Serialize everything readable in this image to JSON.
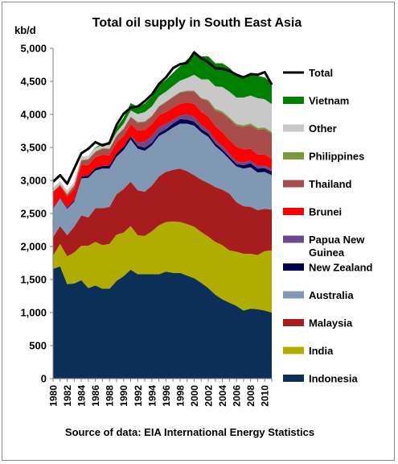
{
  "chart_data": {
    "type": "area",
    "stacked": true,
    "title": "Total oil supply in South East Asia",
    "ylabel": "kb/d",
    "source": "Source of data: EIA International Energy Statistics",
    "ylim": [
      0,
      5000
    ],
    "yticks": [
      "0",
      "500",
      "1,000",
      "1,500",
      "2,000",
      "2,500",
      "3,000",
      "3,500",
      "4,000",
      "4,500",
      "5,000"
    ],
    "ytick_values": [
      0,
      500,
      1000,
      1500,
      2000,
      2500,
      3000,
      3500,
      4000,
      4500,
      5000
    ],
    "x": [
      1980,
      1981,
      1982,
      1983,
      1984,
      1985,
      1986,
      1987,
      1988,
      1989,
      1990,
      1991,
      1992,
      1993,
      1994,
      1995,
      1996,
      1997,
      1998,
      1999,
      2000,
      2001,
      2002,
      2003,
      2004,
      2005,
      2006,
      2007,
      2008,
      2009,
      2010,
      2011
    ],
    "xtick_labels": [
      "1980",
      "1982",
      "1984",
      "1986",
      "1988",
      "1990",
      "1992",
      "1994",
      "1996",
      "1998",
      "2000",
      "2002",
      "2004",
      "2006",
      "2008",
      "2010"
    ],
    "grid": false,
    "legend_position": "right",
    "series": [
      {
        "name": "Indonesia",
        "color": "#0b2f57",
        "values": [
          1660,
          1700,
          1430,
          1440,
          1490,
          1370,
          1410,
          1360,
          1360,
          1480,
          1550,
          1650,
          1580,
          1580,
          1580,
          1580,
          1620,
          1600,
          1600,
          1560,
          1520,
          1450,
          1370,
          1270,
          1200,
          1150,
          1100,
          1030,
          1060,
          1050,
          1030,
          1000
        ]
      },
      {
        "name": "India",
        "color": "#b0ad00",
        "values": [
          200,
          340,
          420,
          470,
          520,
          640,
          660,
          660,
          680,
          700,
          660,
          660,
          590,
          580,
          650,
          740,
          750,
          780,
          770,
          780,
          780,
          770,
          780,
          800,
          820,
          790,
          820,
          860,
          830,
          820,
          900,
          940
        ]
      },
      {
        "name": "Malaysia",
        "color": "#a71c1c",
        "values": [
          280,
          270,
          320,
          390,
          460,
          430,
          510,
          560,
          560,
          610,
          660,
          670,
          680,
          670,
          690,
          740,
          760,
          780,
          810,
          800,
          780,
          790,
          810,
          830,
          840,
          860,
          750,
          720,
          710,
          680,
          640,
          620
        ]
      },
      {
        "name": "Australia",
        "color": "#8098b4",
        "values": [
          430,
          420,
          400,
          380,
          560,
          600,
          570,
          600,
          580,
          570,
          590,
          640,
          630,
          620,
          610,
          610,
          600,
          640,
          680,
          720,
          750,
          720,
          700,
          620,
          570,
          520,
          540,
          570,
          600,
          570,
          560,
          520
        ]
      },
      {
        "name": "New Zealand",
        "color": "#000050",
        "values": [
          5,
          10,
          15,
          20,
          30,
          35,
          40,
          40,
          45,
          50,
          50,
          50,
          45,
          45,
          40,
          45,
          45,
          60,
          70,
          60,
          60,
          50,
          50,
          40,
          40,
          40,
          40,
          50,
          60,
          60,
          55,
          55
        ]
      },
      {
        "name": "Papua New Guinea",
        "color": "#6a4a8c",
        "values": [
          0,
          0,
          0,
          0,
          0,
          0,
          0,
          0,
          0,
          0,
          0,
          0,
          50,
          90,
          100,
          90,
          80,
          60,
          50,
          80,
          70,
          60,
          50,
          50,
          50,
          40,
          40,
          40,
          40,
          40,
          40,
          35
        ]
      },
      {
        "name": "Brunei",
        "color": "#ff0000",
        "values": [
          250,
          180,
          170,
          170,
          170,
          160,
          160,
          170,
          160,
          160,
          160,
          180,
          180,
          180,
          180,
          180,
          180,
          180,
          180,
          180,
          200,
          200,
          210,
          210,
          210,
          210,
          220,
          200,
          180,
          170,
          170,
          160
        ]
      },
      {
        "name": "Thailand",
        "color": "#a94c4c",
        "values": [
          5,
          10,
          30,
          50,
          70,
          80,
          80,
          90,
          90,
          100,
          110,
          110,
          120,
          120,
          120,
          130,
          150,
          160,
          170,
          170,
          190,
          200,
          230,
          240,
          290,
          320,
          320,
          340,
          360,
          380,
          380,
          380
        ]
      },
      {
        "name": "Philippines",
        "color": "#779a3c",
        "values": [
          10,
          10,
          10,
          10,
          10,
          10,
          10,
          10,
          10,
          10,
          10,
          10,
          10,
          10,
          10,
          10,
          10,
          10,
          10,
          10,
          10,
          10,
          20,
          25,
          25,
          25,
          25,
          25,
          25,
          25,
          25,
          25
        ]
      },
      {
        "name": "Other",
        "color": "#c8c8c8",
        "values": [
          50,
          50,
          50,
          50,
          50,
          50,
          50,
          50,
          50,
          50,
          70,
          90,
          120,
          140,
          140,
          150,
          150,
          160,
          170,
          190,
          240,
          280,
          310,
          340,
          370,
          390,
          400,
          420,
          420,
          450,
          430,
          420
        ]
      },
      {
        "name": "Vietnam",
        "color": "#008000",
        "values": [
          0,
          0,
          0,
          0,
          0,
          0,
          10,
          20,
          40,
          70,
          90,
          110,
          110,
          130,
          150,
          170,
          180,
          200,
          220,
          280,
          320,
          350,
          350,
          350,
          360,
          360,
          340,
          330,
          310,
          340,
          330,
          310
        ]
      }
    ],
    "total": {
      "name": "Total",
      "color": "#000000",
      "values": [
        2980,
        3080,
        2950,
        3180,
        3410,
        3480,
        3580,
        3530,
        3570,
        3840,
        4010,
        4100,
        4120,
        4200,
        4300,
        4460,
        4560,
        4700,
        4760,
        4780,
        4940,
        4850,
        4790,
        4700,
        4690,
        4660,
        4600,
        4560,
        4610,
        4600,
        4640,
        4450
      ]
    }
  }
}
